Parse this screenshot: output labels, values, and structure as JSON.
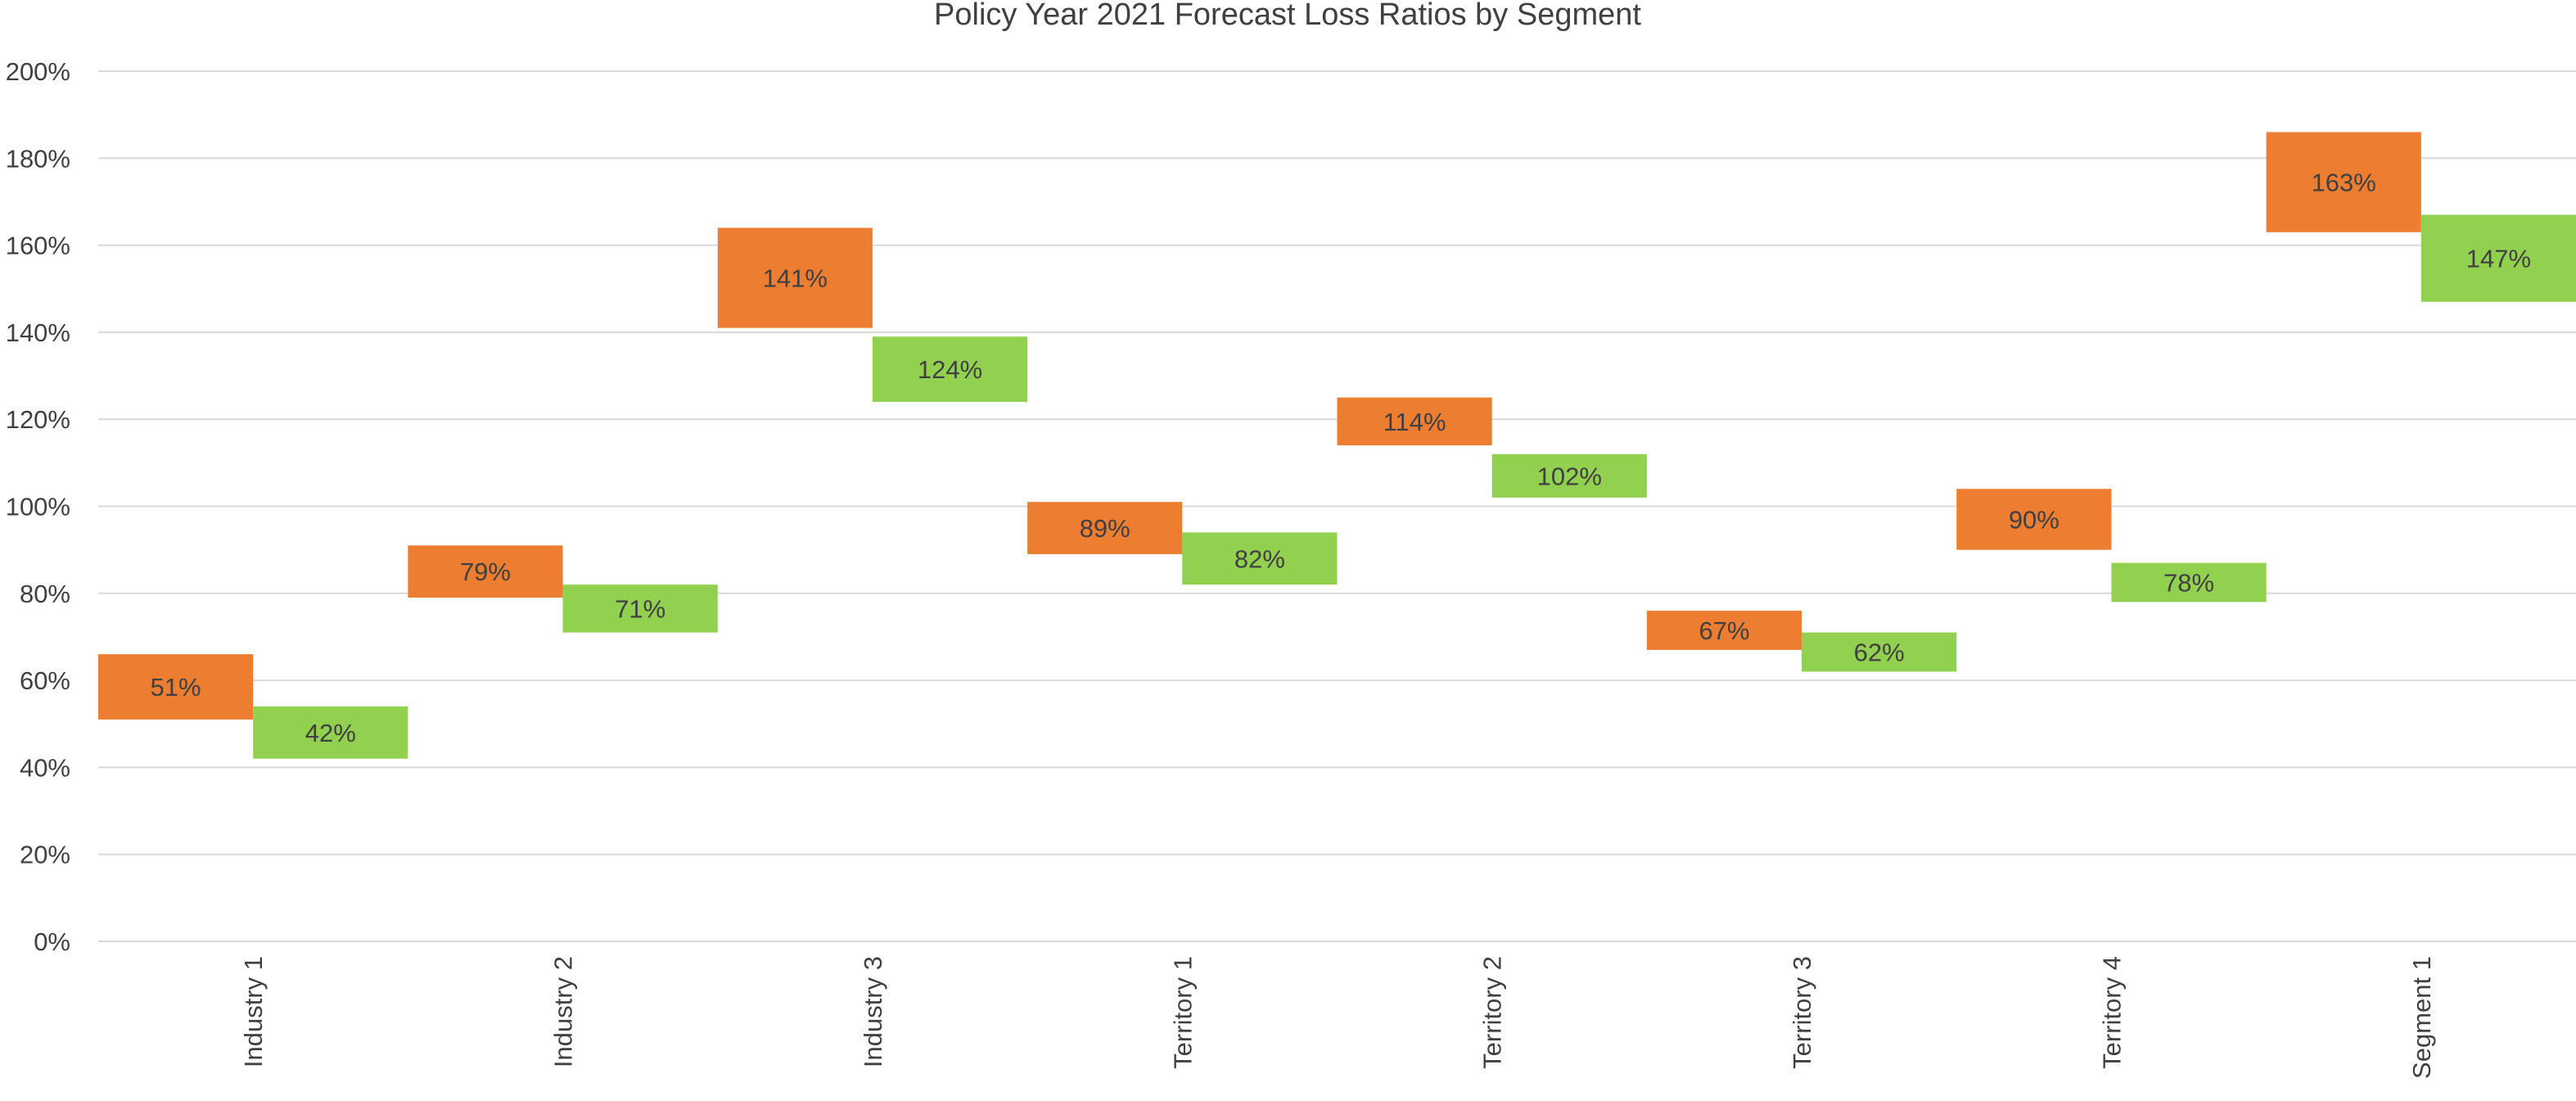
{
  "chart_data": {
    "type": "bar",
    "title": "Policy Year 2021 Forecast Loss Ratios by Segment",
    "xlabel": "",
    "ylabel": "",
    "ylim": [
      0,
      2.0
    ],
    "y_ticks": [
      0,
      0.2,
      0.4,
      0.6,
      0.8,
      1.0,
      1.2,
      1.4,
      1.6,
      1.8,
      2.0
    ],
    "y_tick_labels": [
      "0%",
      "20%",
      "40%",
      "60%",
      "80%",
      "100%",
      "120%",
      "140%",
      "160%",
      "180%",
      "200%"
    ],
    "grid": true,
    "legend": "none",
    "categories": [
      "Industry 1",
      "Industry 2",
      "Industry 3",
      "Territory 1",
      "Territory 2",
      "Territory 3",
      "Territory 4",
      "Segment 1"
    ],
    "series": [
      {
        "color": "#ED7D31",
        "values": [
          0.51,
          0.79,
          1.41,
          0.89,
          1.14,
          0.67,
          0.9,
          1.63
        ],
        "upper": [
          0.66,
          0.91,
          1.64,
          1.01,
          1.25,
          0.76,
          1.04,
          1.86
        ],
        "labels": [
          "51%",
          "79%",
          "141%",
          "89%",
          "114%",
          "67%",
          "90%",
          "163%"
        ]
      },
      {
        "color": "#92D050",
        "values": [
          0.42,
          0.71,
          1.24,
          0.82,
          1.02,
          0.62,
          0.78,
          1.47
        ],
        "upper": [
          0.54,
          0.82,
          1.39,
          0.94,
          1.12,
          0.71,
          0.87,
          1.67
        ],
        "labels": [
          "42%",
          "71%",
          "124%",
          "82%",
          "102%",
          "62%",
          "78%",
          "147%"
        ]
      }
    ]
  }
}
